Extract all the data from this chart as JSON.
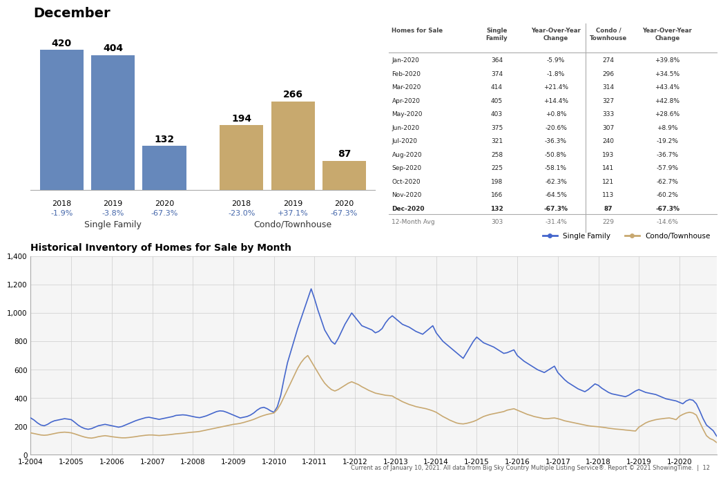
{
  "title_bar": "December",
  "bar_sf_values": [
    420,
    404,
    132
  ],
  "bar_sf_labels": [
    "2018",
    "2019",
    "2020"
  ],
  "bar_sf_pct": [
    "-1.9%",
    "-3.8%",
    "-67.3%"
  ],
  "bar_condo_values": [
    194,
    266,
    87
  ],
  "bar_condo_labels": [
    "2018",
    "2019",
    "2020"
  ],
  "bar_condo_pct": [
    "-23.0%",
    "+37.1%",
    "-67.3%"
  ],
  "bar_sf_color": "#6688bb",
  "bar_condo_color": "#c8a96e",
  "bar_sf_label": "Single Family",
  "bar_condo_label": "Condo/Townhouse",
  "pct_color": "#4466aa",
  "table_rows": [
    [
      "Jan-2020",
      "364",
      "-5.9%",
      "274",
      "+39.8%"
    ],
    [
      "Feb-2020",
      "374",
      "-1.8%",
      "296",
      "+34.5%"
    ],
    [
      "Mar-2020",
      "414",
      "+21.4%",
      "314",
      "+43.4%"
    ],
    [
      "Apr-2020",
      "405",
      "+14.4%",
      "327",
      "+42.8%"
    ],
    [
      "May-2020",
      "403",
      "+0.8%",
      "333",
      "+28.6%"
    ],
    [
      "Jun-2020",
      "375",
      "-20.6%",
      "307",
      "+8.9%"
    ],
    [
      "Jul-2020",
      "321",
      "-36.3%",
      "240",
      "-19.2%"
    ],
    [
      "Aug-2020",
      "258",
      "-50.8%",
      "193",
      "-36.7%"
    ],
    [
      "Sep-2020",
      "225",
      "-58.1%",
      "141",
      "-57.9%"
    ],
    [
      "Oct-2020",
      "198",
      "-62.3%",
      "121",
      "-62.7%"
    ],
    [
      "Nov-2020",
      "166",
      "-64.5%",
      "113",
      "-60.2%"
    ],
    [
      "Dec-2020",
      "132",
      "-67.3%",
      "87",
      "-67.3%"
    ],
    [
      "12-Month Avg",
      "303",
      "-31.4%",
      "229",
      "-14.6%"
    ]
  ],
  "bold_row": 11,
  "line_title": "Historical Inventory of Homes for Sale by Month",
  "line_sf_color": "#4466cc",
  "line_condo_color": "#c8a870",
  "line_yticks": [
    0,
    200,
    400,
    600,
    800,
    1000,
    1200,
    1400
  ],
  "line_xtick_labels": [
    "1-2004",
    "1-2005",
    "1-2006",
    "1-2007",
    "1-2008",
    "1-2009",
    "1-2010",
    "1-2011",
    "1-2012",
    "1-2013",
    "1-2014",
    "1-2015",
    "1-2016",
    "1-2017",
    "1-2018",
    "1-2019",
    "1-2020"
  ],
  "footer_text": "Current as of January 10, 2021. All data from Big Sky Country Multiple Listing Service®. Report © 2021 ShowingTime.  |  12",
  "bg_color": "#ffffff"
}
